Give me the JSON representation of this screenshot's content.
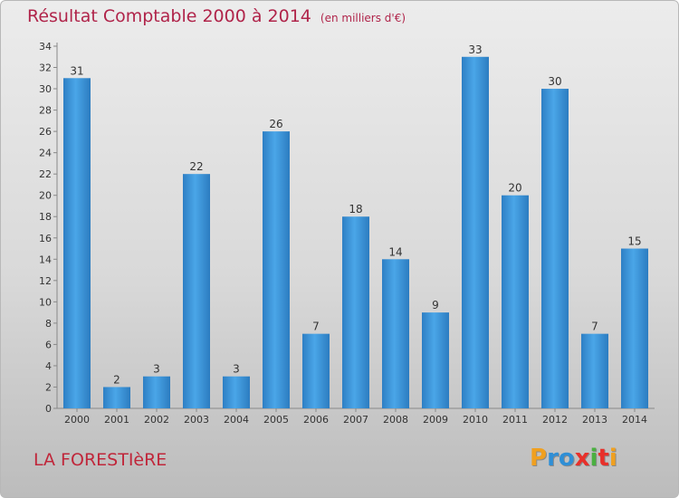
{
  "chart_data": {
    "type": "bar",
    "title": "Résultat Comptable 2000 à 2014",
    "subtitle": "(en milliers d'€)",
    "categories": [
      "2000",
      "2001",
      "2002",
      "2003",
      "2004",
      "2005",
      "2006",
      "2007",
      "2008",
      "2009",
      "2010",
      "2011",
      "2012",
      "2013",
      "2014"
    ],
    "values": [
      31,
      2,
      3,
      22,
      3,
      26,
      7,
      18,
      14,
      9,
      33,
      20,
      30,
      7,
      15
    ],
    "ylim": [
      0,
      34
    ],
    "yticks": [
      0,
      2,
      4,
      6,
      8,
      10,
      12,
      14,
      16,
      18,
      20,
      22,
      24,
      26,
      28,
      30,
      32,
      34
    ],
    "grid": false,
    "bar_color": "#3a93d8"
  },
  "commune": "LA FORESTIèRE",
  "logo": {
    "letters": [
      "P",
      "r",
      "o",
      "x",
      "i",
      "t",
      "i"
    ],
    "colors": [
      "#f0a020",
      "#2f8fd6",
      "#2f8fd6",
      "#e8302a",
      "#4ab040",
      "#e8302a",
      "#f0a020"
    ]
  },
  "colors": {
    "title": "#b0244a",
    "commune": "#c0263a"
  }
}
